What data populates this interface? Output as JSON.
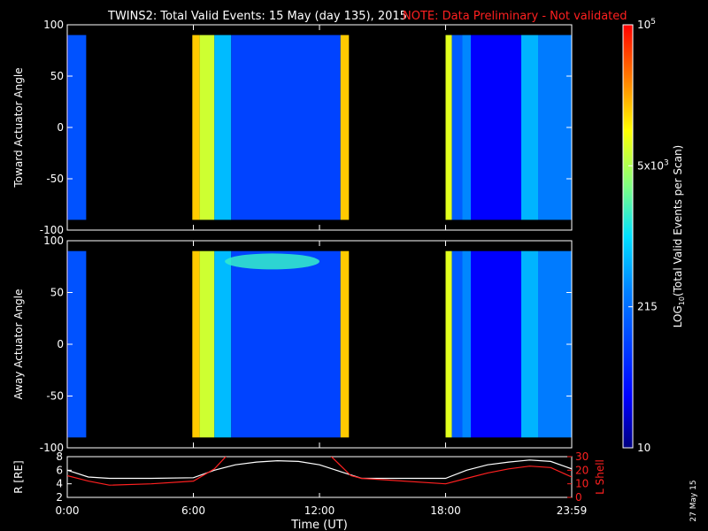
{
  "title": "TWINS2: Total Valid Events: 15 May (day 135), 2015",
  "note": "NOTE: Data Preliminary - Not validated",
  "footer_date": "27 May 15",
  "colors": {
    "note": "#ff2020",
    "lshell": "#ff2020",
    "radius": "#ffffff",
    "background": "#000000"
  },
  "chart_data": [
    {
      "type": "heatmap",
      "ylabel": "Toward Actuator Angle",
      "y_ticks": [
        "100",
        "50",
        "0",
        "-50",
        "-100"
      ],
      "ylim": [
        -100,
        100
      ],
      "xlim_hours": [
        0,
        24
      ],
      "data_angle_range": [
        -90,
        90
      ],
      "color_scale": "log",
      "segments": [
        {
          "start": 0.0,
          "end": 0.05,
          "level": 0.15
        },
        {
          "start": 0.05,
          "end": 0.9,
          "level": 0.28
        },
        {
          "start": 5.95,
          "end": 6.3,
          "level": 0.8
        },
        {
          "start": 6.3,
          "end": 7.0,
          "level": 0.7
        },
        {
          "start": 7.0,
          "end": 7.8,
          "level": 0.45
        },
        {
          "start": 7.8,
          "end": 13.0,
          "level": 0.25
        },
        {
          "start": 13.0,
          "end": 13.4,
          "level": 0.8
        },
        {
          "start": 18.0,
          "end": 18.3,
          "level": 0.72
        },
        {
          "start": 18.3,
          "end": 18.8,
          "level": 0.3
        },
        {
          "start": 18.8,
          "end": 19.2,
          "level": 0.38
        },
        {
          "start": 19.2,
          "end": 21.6,
          "level": 0.12
        },
        {
          "start": 21.6,
          "end": 22.4,
          "level": 0.44
        },
        {
          "start": 22.4,
          "end": 24.0,
          "level": 0.36
        }
      ]
    },
    {
      "type": "heatmap",
      "ylabel": "Away Actuator Angle",
      "y_ticks": [
        "100",
        "50",
        "0",
        "-50",
        "-100"
      ],
      "ylim": [
        -100,
        100
      ],
      "xlim_hours": [
        0,
        24
      ],
      "data_angle_range": [
        -90,
        90
      ],
      "color_scale": "log",
      "segments": [
        {
          "start": 0.0,
          "end": 0.05,
          "level": 0.15
        },
        {
          "start": 0.05,
          "end": 0.9,
          "level": 0.28
        },
        {
          "start": 5.95,
          "end": 6.3,
          "level": 0.8
        },
        {
          "start": 6.3,
          "end": 7.0,
          "level": 0.7
        },
        {
          "start": 7.0,
          "end": 7.8,
          "level": 0.45
        },
        {
          "start": 7.8,
          "end": 13.0,
          "level": 0.25
        },
        {
          "start": 13.0,
          "end": 13.4,
          "level": 0.8
        },
        {
          "start": 18.0,
          "end": 18.3,
          "level": 0.72
        },
        {
          "start": 18.3,
          "end": 18.8,
          "level": 0.3
        },
        {
          "start": 18.8,
          "end": 19.2,
          "level": 0.38
        },
        {
          "start": 19.2,
          "end": 21.6,
          "level": 0.12
        },
        {
          "start": 21.6,
          "end": 22.4,
          "level": 0.44
        },
        {
          "start": 22.4,
          "end": 24.0,
          "level": 0.36
        }
      ],
      "hotspot": {
        "start": 7.5,
        "end": 12.0,
        "angle_center": 80,
        "level": 0.55
      }
    },
    {
      "type": "line",
      "xlabel": "Time (UT)",
      "x_ticks": [
        {
          "hour": 0,
          "label": "0:00"
        },
        {
          "hour": 6,
          "label": "6:00"
        },
        {
          "hour": 12,
          "label": "12:00"
        },
        {
          "hour": 18,
          "label": "18:00"
        },
        {
          "hour": 24,
          "label": "23:59"
        }
      ],
      "left_axis": {
        "label": "R [RE]",
        "ylim": [
          2,
          8
        ],
        "ticks": [
          "8",
          "6",
          "4",
          "2"
        ]
      },
      "right_axis": {
        "label": "L Shell",
        "ylim": [
          0,
          30
        ],
        "ticks": [
          "30",
          "20",
          "10",
          "0"
        ]
      },
      "series": [
        {
          "axis": "left",
          "x": [
            0,
            1,
            2,
            4,
            6,
            7,
            8,
            9,
            10,
            11,
            12,
            13,
            14,
            18,
            19,
            20,
            21,
            22,
            23,
            24
          ],
          "y": [
            6.0,
            5.0,
            4.8,
            4.8,
            4.9,
            6.0,
            6.8,
            7.2,
            7.4,
            7.3,
            6.8,
            5.8,
            4.8,
            4.8,
            6.0,
            6.8,
            7.2,
            7.5,
            7.3,
            6.2
          ]
        },
        {
          "axis": "right",
          "x": [
            0,
            1,
            2,
            4,
            6,
            7,
            7.6,
            12.5,
            13.5,
            14,
            18,
            19,
            20,
            21,
            22,
            23,
            24
          ],
          "y": [
            16,
            12,
            9,
            10,
            12,
            21,
            31,
            31,
            16,
            14,
            10,
            14,
            18,
            21,
            23,
            22,
            15
          ]
        }
      ]
    },
    {
      "type": "colorbar",
      "label": "Total Valid Events per Scan",
      "label_prefix": "LOG",
      "label_sub": "10",
      "ticks": [
        {
          "mantissa": "10",
          "exp": "5"
        },
        {
          "mantissa": "5x10",
          "exp": "3"
        },
        {
          "mantissa": "215",
          "exp": ""
        },
        {
          "mantissa": "10",
          "exp": ""
        }
      ]
    }
  ]
}
